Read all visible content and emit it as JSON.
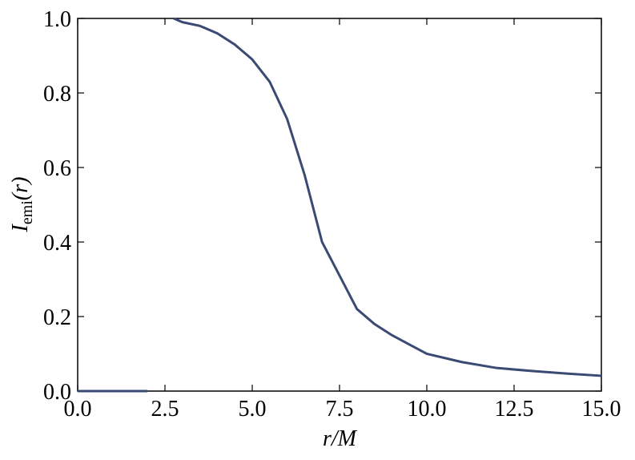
{
  "chart_data": {
    "type": "line",
    "xlabel": "r/M",
    "ylabel": {
      "main": "I",
      "sub": "emi",
      "tail": "(r)"
    },
    "x": [
      0,
      1,
      2,
      null,
      2.75,
      3,
      3.5,
      4,
      4.5,
      5,
      5.5,
      6,
      6.5,
      7,
      7.5,
      8,
      8.5,
      9,
      10,
      11,
      12,
      13,
      14,
      15
    ],
    "series": [
      {
        "name": "I_emi",
        "color": "#3a4a73",
        "values": [
          0,
          0,
          0,
          null,
          1.0,
          0.99,
          0.98,
          0.96,
          0.93,
          0.89,
          0.83,
          0.73,
          0.58,
          0.4,
          0.31,
          0.22,
          0.18,
          0.15,
          0.1,
          0.078,
          0.062,
          0.054,
          0.047,
          0.041
        ]
      }
    ],
    "xlim": [
      0,
      15
    ],
    "ylim": [
      0,
      1
    ],
    "xticks": [
      {
        "value": 0,
        "label": "0.0"
      },
      {
        "value": 2.5,
        "label": "2.5"
      },
      {
        "value": 5,
        "label": "5.0"
      },
      {
        "value": 7.5,
        "label": "7.5"
      },
      {
        "value": 10,
        "label": "10.0"
      },
      {
        "value": 12.5,
        "label": "12.5"
      },
      {
        "value": 15,
        "label": "15.0"
      }
    ],
    "yticks": [
      {
        "value": 0,
        "label": "0.0"
      },
      {
        "value": 0.2,
        "label": "0.2"
      },
      {
        "value": 0.4,
        "label": "0.4"
      },
      {
        "value": 0.6,
        "label": "0.6"
      },
      {
        "value": 0.8,
        "label": "0.8"
      },
      {
        "value": 1,
        "label": "1.0"
      }
    ],
    "grid": false
  }
}
